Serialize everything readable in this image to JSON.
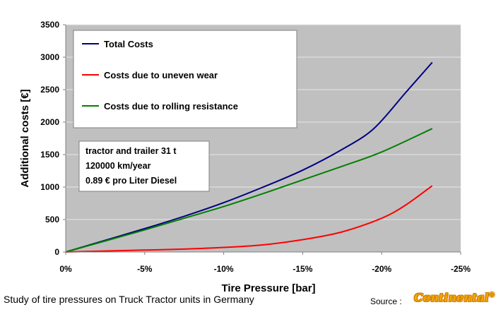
{
  "chart_data": {
    "type": "line",
    "title": "",
    "xlabel": "Tire Pressure [bar]",
    "ylabel": "Additional costs  [€]",
    "xlim": [
      0,
      -25
    ],
    "ylim": [
      0,
      3500
    ],
    "x_ticks": [
      0,
      -5,
      -10,
      -15,
      -20,
      -25
    ],
    "x_tick_labels": [
      "0%",
      "-5%",
      "-10%",
      "-15%",
      "-20%",
      "-25%"
    ],
    "y_ticks": [
      0,
      500,
      1000,
      1500,
      2000,
      2500,
      3000,
      3500
    ],
    "grid": true,
    "legend_position": "top-left",
    "series": [
      {
        "name": "Total Costs",
        "color": "#000080",
        "x": [
          0,
          -2.5,
          -5,
          -7.5,
          -10,
          -12.5,
          -15,
          -17.5,
          -19.5,
          -21.5,
          -23.2
        ],
        "y": [
          0,
          180,
          360,
          550,
          760,
          1000,
          1260,
          1580,
          1900,
          2450,
          2920
        ]
      },
      {
        "name": "Costs due to uneven wear",
        "color": "#ff0000",
        "x": [
          0,
          -2.5,
          -5,
          -7.5,
          -10,
          -12.5,
          -15,
          -17.5,
          -20,
          -21.5,
          -23.2
        ],
        "y": [
          0,
          15,
          30,
          45,
          70,
          110,
          190,
          310,
          520,
          720,
          1020
        ]
      },
      {
        "name": "Costs due to rolling resistance",
        "color": "#008000",
        "x": [
          0,
          -2.5,
          -5,
          -7.5,
          -10,
          -12.5,
          -15,
          -17.5,
          -20,
          -23.2
        ],
        "y": [
          0,
          170,
          340,
          520,
          700,
          900,
          1110,
          1320,
          1540,
          1900
        ]
      }
    ],
    "annotation": [
      "tractor and trailer 31 t",
      "120000 km/year",
      "0.89 € pro Liter Diesel"
    ]
  },
  "footer": {
    "caption": "Study of tire pressures on Truck Tractor units in Germany",
    "source_label": "Source :",
    "logo_text": "Continental",
    "logo_mark": "®",
    "logo_color": "#f7a600"
  }
}
